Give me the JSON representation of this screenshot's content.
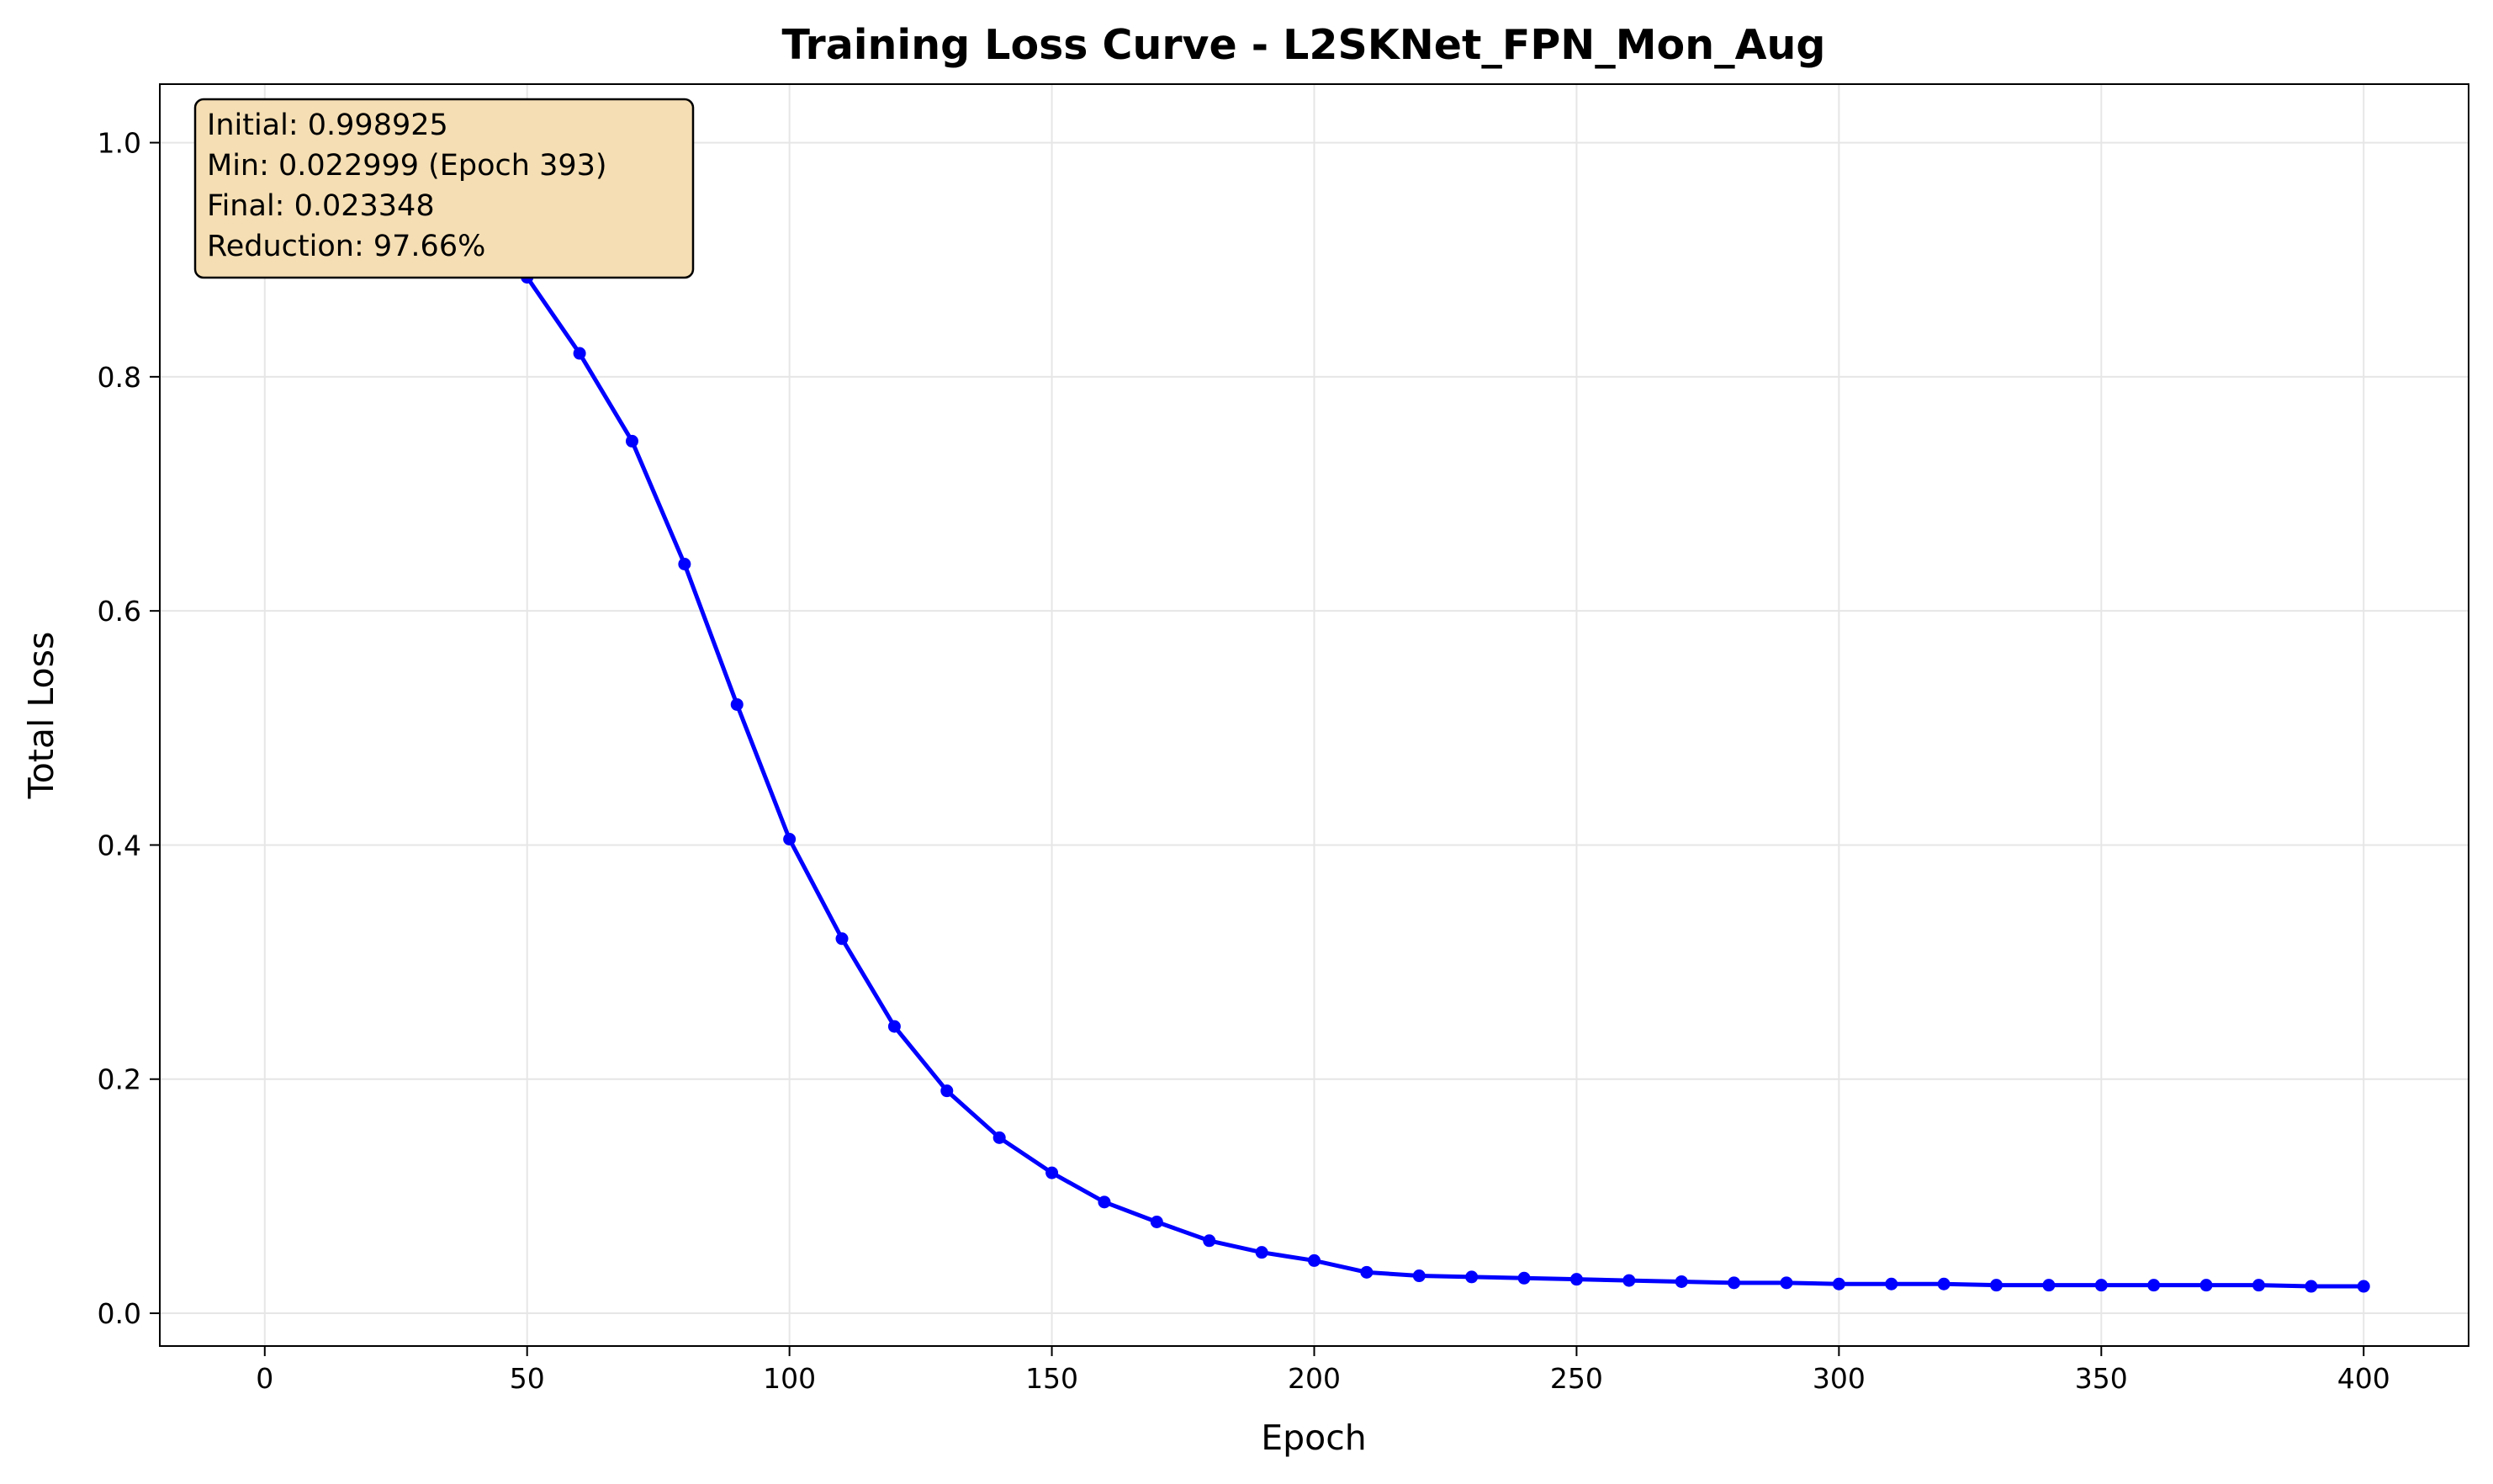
{
  "chart_data": {
    "type": "line",
    "title": "Training Loss Curve - L2SKNet_FPN_Mon_Aug",
    "xlabel": "Epoch",
    "ylabel": "Total Loss",
    "xlim": [
      -20,
      420
    ],
    "ylim": [
      -0.028,
      1.05
    ],
    "x_ticks": [
      0,
      50,
      100,
      150,
      200,
      250,
      300,
      350,
      400
    ],
    "y_ticks": [
      0.0,
      0.2,
      0.4,
      0.6,
      0.8,
      1.0
    ],
    "x_tick_labels": [
      "0",
      "50",
      "100",
      "150",
      "200",
      "250",
      "300",
      "350",
      "400"
    ],
    "y_tick_labels": [
      "0.0",
      "0.2",
      "0.4",
      "0.6",
      "0.8",
      "1.0"
    ],
    "grid": true,
    "series": [
      {
        "color": "#0000ff",
        "marker": "circle",
        "x": [
          0,
          10,
          20,
          30,
          40,
          50,
          60,
          70,
          80,
          90,
          100,
          110,
          120,
          130,
          140,
          150,
          160,
          170,
          180,
          190,
          200,
          210,
          220,
          230,
          240,
          250,
          260,
          270,
          280,
          290,
          300,
          310,
          320,
          330,
          340,
          350,
          360,
          370,
          380,
          390,
          400
        ],
        "y": [
          0.999,
          0.995,
          0.985,
          0.965,
          0.935,
          0.885,
          0.82,
          0.745,
          0.64,
          0.52,
          0.405,
          0.32,
          0.245,
          0.19,
          0.15,
          0.12,
          0.095,
          0.078,
          0.062,
          0.052,
          0.045,
          0.035,
          0.032,
          0.031,
          0.03,
          0.029,
          0.028,
          0.027,
          0.026,
          0.026,
          0.025,
          0.025,
          0.025,
          0.024,
          0.024,
          0.024,
          0.024,
          0.024,
          0.024,
          0.023,
          0.023
        ]
      }
    ],
    "annotation": {
      "lines": [
        "Initial: 0.998925",
        "Min: 0.022999 (Epoch 393)",
        "Final: 0.023348",
        "Reduction: 97.66%"
      ],
      "position": "top-left",
      "background": "#f5deb3",
      "border": "#000000"
    }
  }
}
